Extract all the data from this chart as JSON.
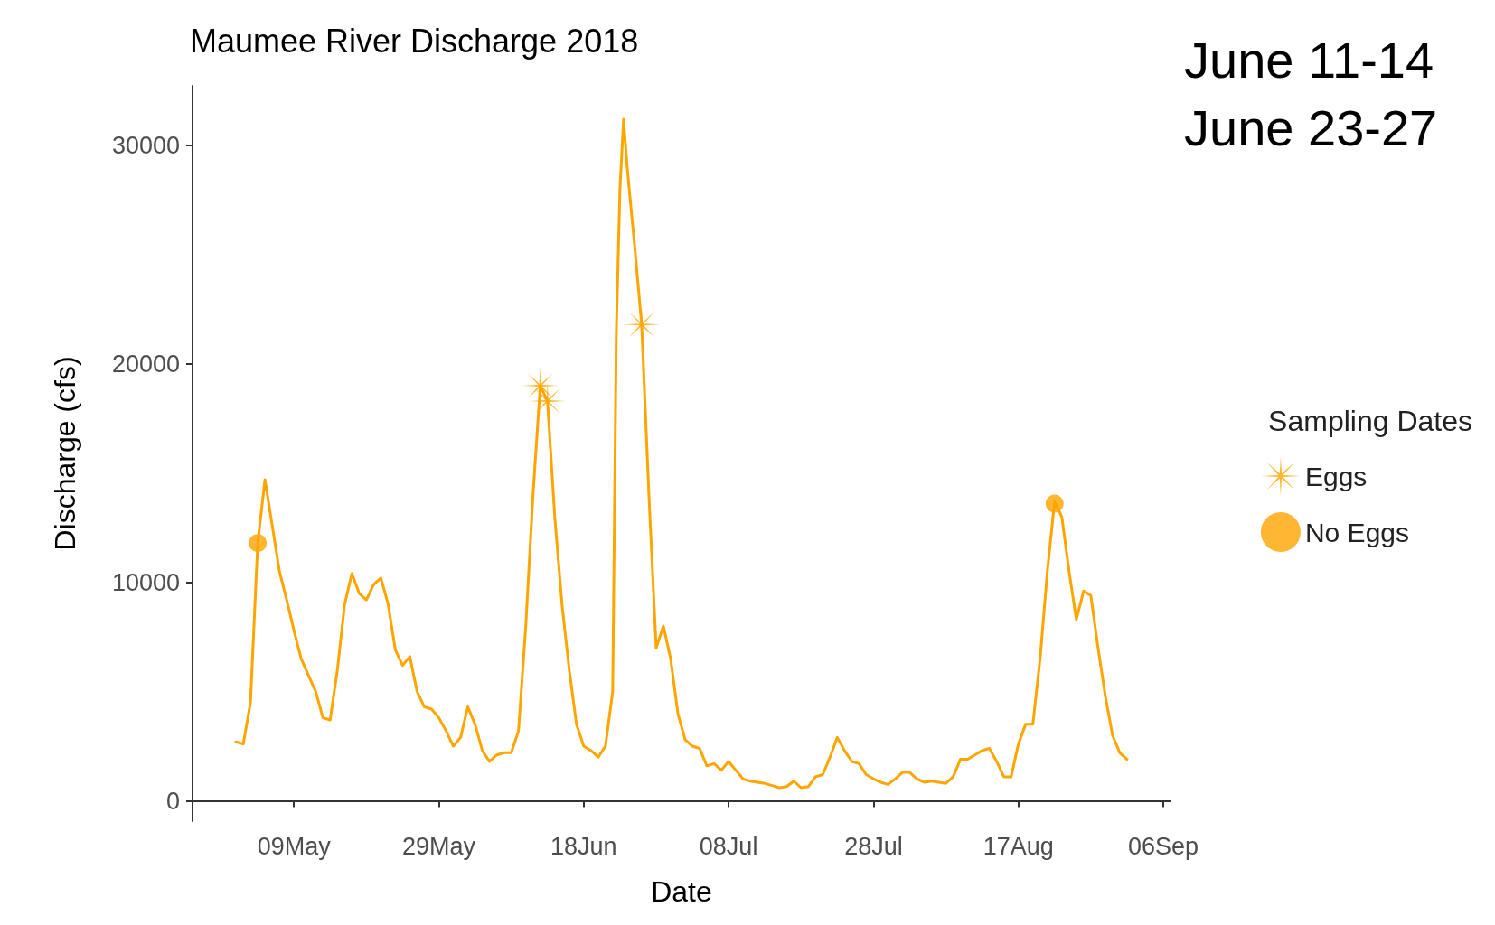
{
  "chart_data": {
    "type": "line",
    "title": "Maumee River Discharge 2018",
    "xlabel": "Date",
    "ylabel": "Discharge (cfs)",
    "legend_title": "Sampling Dates",
    "annotations": [
      "June 11-14",
      "June 23-27"
    ],
    "xlim": [
      "2018-04-25",
      "2018-09-07"
    ],
    "xticks": [
      {
        "value": "2018-05-09",
        "label": "09May"
      },
      {
        "value": "2018-05-29",
        "label": "29May"
      },
      {
        "value": "2018-06-18",
        "label": "18Jun"
      },
      {
        "value": "2018-07-08",
        "label": "08Jul"
      },
      {
        "value": "2018-07-28",
        "label": "28Jul"
      },
      {
        "value": "2018-08-17",
        "label": "17Aug"
      },
      {
        "value": "2018-09-06",
        "label": "06Sep"
      }
    ],
    "ylim": [
      -930,
      32730
    ],
    "yticks": [
      0,
      10000,
      20000,
      30000
    ],
    "grid": false,
    "legend": "right",
    "series": [
      {
        "type": "line",
        "color": "#ffa500",
        "marker": "none",
        "line_style": "solid",
        "x": [
          "2018-05-01",
          "2018-05-02",
          "2018-05-03",
          "2018-05-04",
          "2018-05-05",
          "2018-05-07",
          "2018-05-08",
          "2018-05-09",
          "2018-05-10",
          "2018-05-12",
          "2018-05-13",
          "2018-05-14",
          "2018-05-15",
          "2018-05-16",
          "2018-05-17",
          "2018-05-18",
          "2018-05-19",
          "2018-05-20",
          "2018-05-21",
          "2018-05-22",
          "2018-05-23",
          "2018-05-24",
          "2018-05-25",
          "2018-05-26",
          "2018-05-27",
          "2018-05-28",
          "2018-05-29",
          "2018-05-30",
          "2018-05-31",
          "2018-06-01",
          "2018-06-02",
          "2018-06-03",
          "2018-06-04",
          "2018-06-05",
          "2018-06-06",
          "2018-06-07",
          "2018-06-08",
          "2018-06-09",
          "2018-06-10",
          "2018-06-11",
          "2018-06-12",
          "2018-06-13",
          "2018-06-14",
          "2018-06-15",
          "2018-06-16",
          "2018-06-17",
          "2018-06-18",
          "2018-06-19",
          "2018-06-20",
          "2018-06-21",
          "2018-06-22",
          "2018-06-22T12:00",
          "2018-06-23",
          "2018-06-23T12:00",
          "2018-06-24",
          "2018-06-25",
          "2018-06-26",
          "2018-06-27",
          "2018-06-28",
          "2018-06-29",
          "2018-06-30",
          "2018-07-01",
          "2018-07-02",
          "2018-07-03",
          "2018-07-04",
          "2018-07-05",
          "2018-07-06",
          "2018-07-07",
          "2018-07-08",
          "2018-07-09",
          "2018-07-10",
          "2018-07-11",
          "2018-07-12",
          "2018-07-13",
          "2018-07-14",
          "2018-07-15",
          "2018-07-16",
          "2018-07-17",
          "2018-07-18",
          "2018-07-19",
          "2018-07-20",
          "2018-07-21",
          "2018-07-22",
          "2018-07-23",
          "2018-07-24",
          "2018-07-25",
          "2018-07-26",
          "2018-07-27",
          "2018-07-28",
          "2018-07-29",
          "2018-07-30",
          "2018-07-31",
          "2018-08-01",
          "2018-08-02",
          "2018-08-03",
          "2018-08-04",
          "2018-08-05",
          "2018-08-06",
          "2018-08-07",
          "2018-08-08",
          "2018-08-09",
          "2018-08-10",
          "2018-08-11",
          "2018-08-12",
          "2018-08-13",
          "2018-08-14",
          "2018-08-15",
          "2018-08-16",
          "2018-08-17",
          "2018-08-18",
          "2018-08-19",
          "2018-08-20",
          "2018-08-21",
          "2018-08-22",
          "2018-08-23",
          "2018-08-24",
          "2018-08-25",
          "2018-08-26",
          "2018-08-27",
          "2018-08-28",
          "2018-08-29",
          "2018-08-30",
          "2018-08-31",
          "2018-09-01"
        ],
        "values": [
          2700,
          2600,
          4500,
          11800,
          14700,
          10500,
          9200,
          7800,
          6500,
          5000,
          3800,
          3700,
          6000,
          9000,
          10400,
          9500,
          9200,
          9900,
          10200,
          9000,
          6900,
          6200,
          6600,
          5000,
          4300,
          4200,
          3800,
          3200,
          2500,
          2900,
          4300,
          3500,
          2300,
          1800,
          2100,
          2200,
          2200,
          3200,
          8000,
          14000,
          19000,
          18300,
          13000,
          9000,
          6000,
          3500,
          2500,
          2300,
          2000,
          2500,
          5000,
          21500,
          28000,
          31200,
          29000,
          25500,
          21800,
          14000,
          7000,
          8000,
          6500,
          4000,
          2800,
          2500,
          2400,
          1600,
          1700,
          1400,
          1800,
          1400,
          1000,
          900,
          850,
          800,
          700,
          600,
          650,
          900,
          600,
          650,
          1100,
          1200,
          2000,
          2900,
          2300,
          1800,
          1700,
          1200,
          1000,
          850,
          750,
          1000,
          1300,
          1300,
          1000,
          850,
          900,
          850,
          800,
          1100,
          1900,
          1900,
          2100,
          2300,
          2400,
          1800,
          1100,
          1100,
          2600,
          3500,
          3500,
          6500,
          10500,
          13700,
          13000,
          10500,
          8300,
          9600,
          9400,
          7000,
          4800,
          3000,
          2200,
          1900
        ]
      },
      {
        "type": "scatter",
        "name": "Eggs",
        "color": "#ffa500",
        "marker": "star",
        "x": [
          "2018-06-12",
          "2018-06-13",
          "2018-06-26"
        ],
        "values": [
          19000,
          18300,
          21800
        ]
      },
      {
        "type": "scatter",
        "name": "No Eggs",
        "color": "#ffa500",
        "marker": "circle",
        "x": [
          "2018-05-04",
          "2018-08-22"
        ],
        "values": [
          11800,
          13600
        ]
      }
    ]
  }
}
